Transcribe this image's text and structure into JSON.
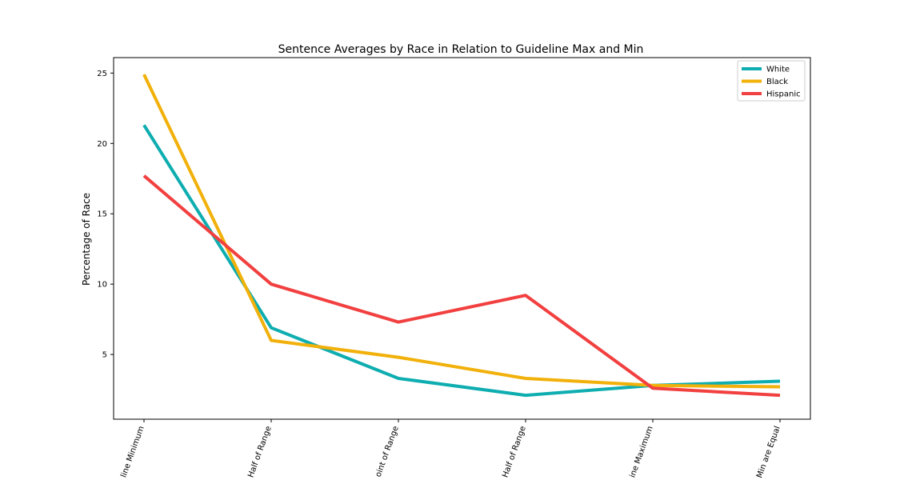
{
  "chart_data": {
    "type": "line",
    "title": "Sentence Averages by Race in Relation to Guideline Max and Min",
    "xlabel": "",
    "ylabel": "Percentage of Race",
    "categories": [
      "line Minimum",
      "Half of Range",
      "oint of Range",
      "Half of Range",
      "ine Maximum",
      "Min are Equal"
    ],
    "series": [
      {
        "name": "White",
        "color": "#0eadb0",
        "values": [
          21.3,
          6.9,
          3.3,
          2.1,
          2.8,
          3.1
        ]
      },
      {
        "name": "Black",
        "color": "#f2b10a",
        "values": [
          24.9,
          6.0,
          4.8,
          3.3,
          2.8,
          2.7
        ]
      },
      {
        "name": "Hispanic",
        "color": "#f23f3f",
        "values": [
          17.7,
          10.0,
          7.3,
          9.2,
          2.6,
          2.1
        ]
      }
    ],
    "yticks": [
      5,
      10,
      15,
      20,
      25
    ],
    "ylim": [
      0.4,
      26.1
    ],
    "legend_position": "top-right",
    "grid": false
  }
}
